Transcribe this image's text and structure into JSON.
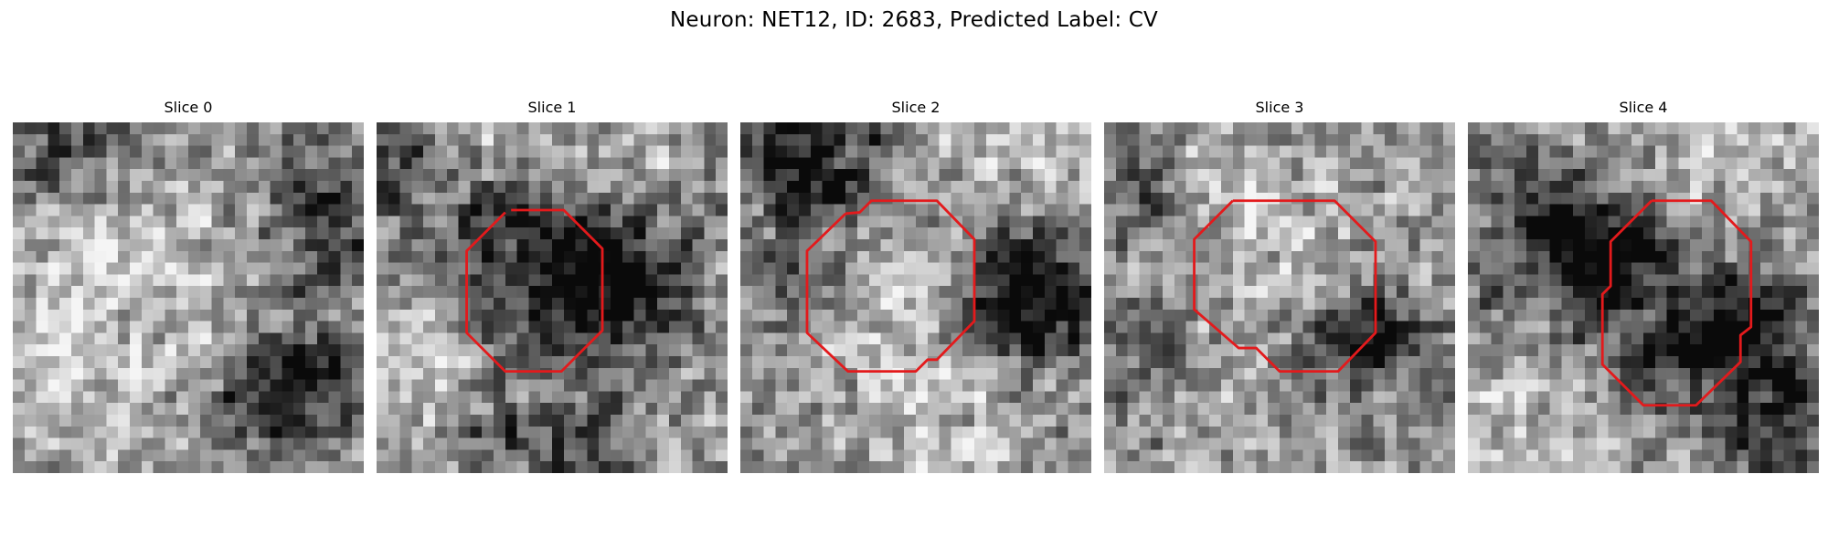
{
  "figure": {
    "title": "Neuron: NET12, ID: 2683, Predicted Label: CV"
  },
  "grid_size": 30,
  "contour_color": "#e31a1c",
  "panels": [
    {
      "title": "Slice 0",
      "seed": 11,
      "dark_blobs": [
        [
          5,
          1,
          5,
          0.7
        ],
        [
          26,
          8,
          4,
          0.8
        ],
        [
          22,
          20,
          3,
          0.6
        ],
        [
          27,
          22,
          3,
          0.8
        ],
        [
          20,
          25,
          3,
          0.6
        ]
      ],
      "light_blobs": [
        [
          6,
          8,
          6,
          0.5
        ],
        [
          14,
          14,
          8,
          0.4
        ],
        [
          5,
          23,
          5,
          0.4
        ]
      ],
      "contour": []
    },
    {
      "title": "Slice 1",
      "seed": 23,
      "dark_blobs": [
        [
          1,
          3,
          4,
          0.6
        ],
        [
          11,
          9,
          4,
          0.9
        ],
        [
          20,
          12,
          3,
          0.5
        ],
        [
          21,
          13,
          5,
          0.8
        ],
        [
          14,
          16,
          4,
          0.7
        ],
        [
          18,
          29,
          4,
          0.6
        ],
        [
          10,
          27,
          3,
          0.5
        ]
      ],
      "light_blobs": [
        [
          9,
          1,
          4,
          0.6
        ],
        [
          21,
          7,
          5,
          0.6
        ],
        [
          11,
          12,
          3,
          0.6
        ],
        [
          3,
          23,
          6,
          0.6
        ]
      ],
      "contour": [
        [
          11.5,
          7.5
        ],
        [
          16.0,
          7.5
        ],
        [
          19.3,
          10.8
        ],
        [
          19.3,
          17.8
        ],
        [
          15.8,
          21.3
        ],
        [
          11.0,
          21.3
        ],
        [
          7.7,
          18.0
        ],
        [
          7.7,
          11.0
        ],
        [
          11.0,
          7.7
        ]
      ]
    },
    {
      "title": "Slice 2",
      "seed": 37,
      "dark_blobs": [
        [
          7,
          4,
          5,
          0.9
        ],
        [
          21,
          13,
          3,
          0.7
        ],
        [
          27,
          13,
          4,
          0.8
        ],
        [
          5,
          14,
          3,
          0.6
        ],
        [
          24,
          18,
          3,
          0.6
        ]
      ],
      "light_blobs": [
        [
          23,
          3,
          6,
          0.6
        ],
        [
          12,
          14,
          5,
          0.8
        ],
        [
          16,
          26,
          6,
          0.4
        ]
      ],
      "contour": [
        [
          9.0,
          7.8
        ],
        [
          10.2,
          7.7
        ],
        [
          11.2,
          6.7
        ],
        [
          16.8,
          6.7
        ],
        [
          20.0,
          10.0
        ],
        [
          20.0,
          17.0
        ],
        [
          16.8,
          20.3
        ],
        [
          16.0,
          20.3
        ],
        [
          15.0,
          21.3
        ],
        [
          9.2,
          21.3
        ],
        [
          5.7,
          18.0
        ],
        [
          5.7,
          11.0
        ],
        [
          9.0,
          7.8
        ]
      ]
    },
    {
      "title": "Slice 3",
      "seed": 53,
      "dark_blobs": [
        [
          4,
          6,
          3,
          0.5
        ],
        [
          24,
          18,
          3,
          0.8
        ],
        [
          20,
          19,
          3,
          0.5
        ],
        [
          3,
          19,
          3,
          0.5
        ]
      ],
      "light_blobs": [
        [
          15,
          13,
          7,
          0.4
        ],
        [
          10,
          4,
          4,
          0.4
        ]
      ],
      "contour": [
        [
          11.0,
          6.7
        ],
        [
          19.7,
          6.7
        ],
        [
          23.2,
          10.2
        ],
        [
          23.2,
          18.0
        ],
        [
          20.0,
          21.3
        ],
        [
          15.0,
          21.3
        ],
        [
          13.0,
          19.3
        ],
        [
          11.5,
          19.3
        ],
        [
          7.7,
          16.0
        ],
        [
          7.7,
          10.0
        ],
        [
          11.0,
          6.7
        ]
      ]
    },
    {
      "title": "Slice 4",
      "seed": 71,
      "dark_blobs": [
        [
          8,
          11,
          5,
          0.9
        ],
        [
          14,
          11,
          4,
          0.8
        ],
        [
          21,
          17,
          4,
          0.9
        ],
        [
          24,
          18,
          3,
          0.6
        ],
        [
          27,
          26,
          4,
          0.8
        ],
        [
          15,
          21,
          3,
          0.6
        ]
      ],
      "light_blobs": [
        [
          20,
          5,
          6,
          0.6
        ],
        [
          7,
          26,
          6,
          0.6
        ],
        [
          16,
          15,
          3,
          0.5
        ]
      ],
      "contour": [
        [
          15.7,
          6.7
        ],
        [
          20.8,
          6.7
        ],
        [
          24.2,
          10.2
        ],
        [
          24.2,
          17.5
        ],
        [
          23.3,
          18.2
        ],
        [
          23.3,
          20.5
        ],
        [
          19.5,
          24.2
        ],
        [
          15.0,
          24.2
        ],
        [
          11.5,
          20.7
        ],
        [
          11.5,
          14.7
        ],
        [
          12.2,
          14.0
        ],
        [
          12.2,
          10.2
        ],
        [
          15.7,
          6.7
        ]
      ]
    }
  ]
}
